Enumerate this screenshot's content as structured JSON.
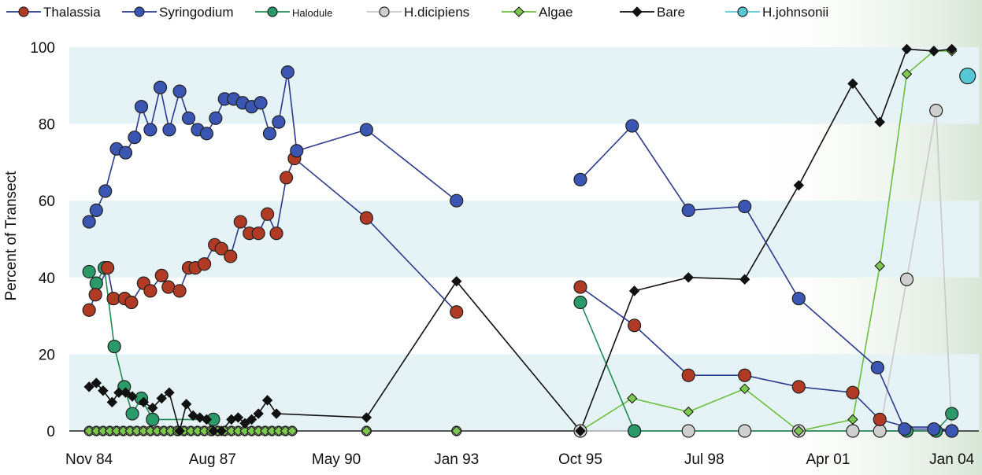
{
  "chart_data": {
    "type": "line",
    "ylabel": "Percent of Transect",
    "xlabel": "",
    "ylim": [
      0,
      100
    ],
    "yticks": [
      0,
      20,
      40,
      60,
      80,
      100
    ],
    "xticks": [
      {
        "label": "Nov 84",
        "t": 1984.84
      },
      {
        "label": "Aug 87",
        "t": 1987.58
      },
      {
        "label": "May 90",
        "t": 1990.33
      },
      {
        "label": "Jan 93",
        "t": 1993.0
      },
      {
        "label": "Oct 95",
        "t": 1995.75
      },
      {
        "label": "Jul 98",
        "t": 1998.5
      },
      {
        "label": "Apr 01",
        "t": 2001.25
      },
      {
        "label": "Jan 04",
        "t": 2004.0
      }
    ],
    "xlim": [
      1984.4,
      2004.6
    ],
    "legend_position": "top",
    "colors": {
      "Thalassia": "#b03a24",
      "Syringodium": "#3b55b3",
      "Halodule": "#2a9b68",
      "H.dicipiens": "#cfcfcf",
      "Algae": "#7ec850",
      "Bare": "#111111",
      "H.johnsonii": "#57c7d6"
    },
    "series": [
      {
        "name": "Thalassia",
        "marker": "circle",
        "line": "#2b3a8c",
        "points": [
          [
            1984.84,
            31.5
          ],
          [
            1984.98,
            35.5
          ],
          [
            1985.25,
            42.5
          ],
          [
            1985.38,
            34.5
          ],
          [
            1985.63,
            34.5
          ],
          [
            1985.78,
            33.5
          ],
          [
            1986.05,
            38.5
          ],
          [
            1986.2,
            36.5
          ],
          [
            1986.45,
            40.5
          ],
          [
            1986.6,
            37.5
          ],
          [
            1986.85,
            36.5
          ],
          [
            1987.05,
            42.5
          ],
          [
            1987.2,
            42.5
          ],
          [
            1987.4,
            43.5
          ],
          [
            1987.63,
            48.5
          ],
          [
            1987.78,
            47.5
          ],
          [
            1987.98,
            45.5
          ],
          [
            1988.2,
            54.5
          ],
          [
            1988.4,
            51.5
          ],
          [
            1988.6,
            51.5
          ],
          [
            1988.8,
            56.5
          ],
          [
            1989.0,
            51.5
          ],
          [
            1989.22,
            66.0
          ],
          [
            1989.4,
            71.0
          ],
          [
            1991.0,
            55.5
          ],
          [
            1993.0,
            31.0
          ]
        ]
      },
      {
        "name": "Syringodium",
        "marker": "circle",
        "line": "#2b3a8c",
        "points": [
          [
            1984.84,
            54.5
          ],
          [
            1985.0,
            57.5
          ],
          [
            1985.2,
            62.5
          ],
          [
            1985.45,
            73.5
          ],
          [
            1985.65,
            72.5
          ],
          [
            1985.85,
            76.5
          ],
          [
            1986.0,
            84.5
          ],
          [
            1986.2,
            78.5
          ],
          [
            1986.42,
            89.5
          ],
          [
            1986.62,
            78.5
          ],
          [
            1986.85,
            88.5
          ],
          [
            1987.05,
            81.5
          ],
          [
            1987.25,
            78.5
          ],
          [
            1987.45,
            77.5
          ],
          [
            1987.65,
            81.5
          ],
          [
            1987.85,
            86.5
          ],
          [
            1988.05,
            86.5
          ],
          [
            1988.25,
            85.5
          ],
          [
            1988.45,
            84.5
          ],
          [
            1988.65,
            85.5
          ],
          [
            1988.85,
            77.5
          ],
          [
            1989.05,
            80.5
          ],
          [
            1989.25,
            93.5
          ],
          [
            1989.45,
            73.0
          ],
          [
            1991.0,
            78.5
          ],
          [
            1993.0,
            60.0
          ],
          [
            1995.75,
            65.5
          ],
          [
            1996.9,
            79.5
          ],
          [
            1998.15,
            57.5
          ],
          [
            1999.4,
            58.5
          ],
          [
            2000.6,
            34.5
          ],
          [
            2002.35,
            16.5
          ],
          [
            2002.95,
            0.5
          ],
          [
            2003.6,
            0.5
          ],
          [
            2004.0,
            0.0
          ]
        ]
      },
      {
        "name": "Halodule",
        "marker": "circle",
        "line": "#1f8c54",
        "points": [
          [
            1984.84,
            41.5
          ],
          [
            1985.0,
            38.5
          ],
          [
            1985.18,
            42.5
          ],
          [
            1985.4,
            22.0
          ],
          [
            1985.62,
            11.5
          ],
          [
            1985.8,
            4.5
          ],
          [
            1986.0,
            8.5
          ],
          [
            1986.25,
            3.0
          ],
          [
            1987.6,
            3.0
          ]
        ],
        "points2": [
          [
            1995.75,
            33.5
          ],
          [
            1996.95,
            0.0
          ],
          [
            2003.0,
            0.0
          ],
          [
            2003.65,
            0.0
          ],
          [
            2004.0,
            4.5
          ]
        ]
      },
      {
        "name": "H.dicipiens",
        "marker": "circle",
        "line": "#c8c8c8",
        "points": [
          [
            1995.75,
            0.0
          ],
          [
            1996.95,
            0.0
          ],
          [
            1998.15,
            0.0
          ],
          [
            1999.4,
            0.0
          ],
          [
            2000.6,
            0.0
          ],
          [
            2001.8,
            0.0
          ],
          [
            2002.4,
            0.0
          ],
          [
            2003.0,
            39.5
          ],
          [
            2003.65,
            83.5
          ],
          [
            2004.0,
            0.0
          ]
        ]
      },
      {
        "name": "Algae",
        "marker": "diamond",
        "line": "#6abf3e",
        "points": [
          [
            1995.75,
            0.0
          ],
          [
            1996.9,
            8.5
          ],
          [
            1998.15,
            5.0
          ],
          [
            1999.4,
            11.0
          ],
          [
            2000.6,
            0.0
          ],
          [
            2001.8,
            3.0
          ],
          [
            2002.4,
            43.0
          ],
          [
            2003.0,
            93.0
          ],
          [
            2003.6,
            99.0
          ],
          [
            2004.0,
            99.0
          ]
        ]
      },
      {
        "name": "Bare",
        "marker": "diamond",
        "line": "#111111",
        "points": [
          [
            1984.84,
            11.5
          ],
          [
            1985.0,
            12.5
          ],
          [
            1985.15,
            10.5
          ],
          [
            1985.35,
            7.5
          ],
          [
            1985.5,
            10.0
          ],
          [
            1985.65,
            10.0
          ],
          [
            1985.8,
            9.0
          ],
          [
            1986.05,
            7.5
          ],
          [
            1986.25,
            6.0
          ],
          [
            1986.45,
            8.5
          ],
          [
            1986.62,
            10.0
          ],
          [
            1986.85,
            0.0
          ],
          [
            1987.0,
            7.0
          ],
          [
            1987.15,
            4.0
          ],
          [
            1987.3,
            3.5
          ],
          [
            1987.45,
            3.0
          ],
          [
            1987.6,
            0.0
          ],
          [
            1987.78,
            0.0
          ],
          [
            1988.0,
            3.0
          ],
          [
            1988.15,
            3.5
          ],
          [
            1988.3,
            2.0
          ],
          [
            1988.45,
            3.0
          ],
          [
            1988.6,
            4.5
          ],
          [
            1988.8,
            8.0
          ],
          [
            1989.0,
            4.5
          ],
          [
            1991.0,
            3.5
          ],
          [
            1993.0,
            39.0
          ],
          [
            1995.75,
            0.0
          ],
          [
            1996.95,
            36.5
          ],
          [
            1998.15,
            40.0
          ],
          [
            1999.4,
            39.5
          ],
          [
            2000.6,
            64.0
          ],
          [
            2001.8,
            90.5
          ],
          [
            2002.4,
            80.5
          ],
          [
            2003.0,
            99.5
          ],
          [
            2003.6,
            99.0
          ],
          [
            2004.0,
            99.5
          ]
        ]
      },
      {
        "name": "H.johnsonii",
        "marker": "circle",
        "line": "#57c7d6",
        "points": [
          [
            2004.35,
            92.5
          ]
        ]
      }
    ],
    "zero_markers": {
      "Algae_early": [
        1984.84,
        1985.0,
        1985.15,
        1985.3,
        1985.45,
        1985.6,
        1985.75,
        1985.9,
        1986.05,
        1986.2,
        1986.35,
        1986.5,
        1986.65,
        1986.8,
        1986.95,
        1987.1,
        1987.25,
        1987.4,
        1987.55,
        1987.7,
        1987.85,
        1988.0,
        1988.15,
        1988.3,
        1988.45,
        1988.6,
        1988.75,
        1988.9,
        1989.05,
        1989.2,
        1989.35,
        1991.0,
        1993.0
      ],
      "Dicipiens_early": [
        1984.84,
        1985.0,
        1985.15,
        1985.3,
        1985.45,
        1985.6,
        1985.75,
        1985.9,
        1986.05,
        1986.2,
        1986.35,
        1986.5,
        1986.65,
        1986.8,
        1986.95,
        1987.1,
        1987.25,
        1987.4,
        1987.55,
        1987.7,
        1987.85,
        1988.0,
        1988.15,
        1988.3,
        1988.45,
        1988.6,
        1988.75,
        1988.9,
        1989.05,
        1989.2,
        1989.35,
        1991.0,
        1993.0
      ]
    }
  }
}
